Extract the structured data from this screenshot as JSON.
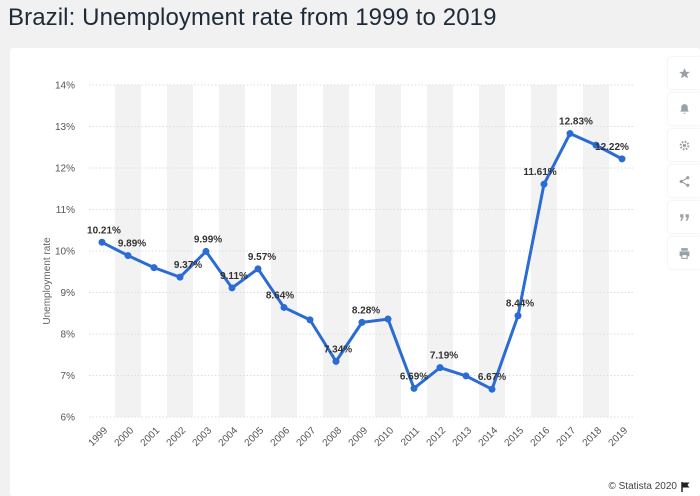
{
  "title": "Brazil: Unemployment rate from 1999 to 2019",
  "credit": "© Statista 2020",
  "toolbar": {
    "items": [
      {
        "icon": "star-icon",
        "label": "Favorite"
      },
      {
        "icon": "bell-icon",
        "label": "Notification"
      },
      {
        "icon": "gear-icon",
        "label": "Settings"
      },
      {
        "icon": "share-icon",
        "label": "Share"
      },
      {
        "icon": "quote-icon",
        "label": "Cite"
      },
      {
        "icon": "print-icon",
        "label": "Print"
      }
    ]
  },
  "colors": {
    "line": "#2a6bd4",
    "band": "#f2f2f2",
    "grid": "#dddddd",
    "toolbar_icon": "#9aa0a6"
  },
  "chart_data": {
    "type": "line",
    "title": "Brazil: Unemployment rate from 1999 to 2019",
    "xlabel": "",
    "ylabel": "Unemployment rate",
    "ylim": [
      6,
      14
    ],
    "yticks": [
      "6%",
      "7%",
      "8%",
      "9%",
      "10%",
      "11%",
      "12%",
      "13%",
      "14%"
    ],
    "categories": [
      "1999",
      "2000",
      "2001",
      "2002",
      "2003",
      "2004",
      "2005",
      "2006",
      "2007",
      "2008",
      "2009",
      "2010",
      "2011",
      "2012",
      "2013",
      "2014",
      "2015",
      "2016",
      "2017",
      "2018",
      "2019"
    ],
    "values": [
      10.21,
      9.89,
      9.6,
      9.37,
      9.99,
      9.11,
      9.57,
      8.64,
      8.34,
      7.34,
      8.28,
      8.36,
      6.69,
      7.19,
      6.99,
      6.67,
      8.44,
      11.61,
      12.83,
      12.55,
      12.22
    ],
    "labels": [
      "10.21%",
      "9.89%",
      "",
      "9.37%",
      "9.99%",
      "9.11%",
      "9.57%",
      "8.64%",
      "",
      "7.34%",
      "8.28%",
      "",
      "6.69%",
      "7.19%",
      "",
      "6.67%",
      "8.44%",
      "11.61%",
      "12.83%",
      "",
      "12.22%"
    ],
    "grid": true,
    "alternating_bands": true
  }
}
